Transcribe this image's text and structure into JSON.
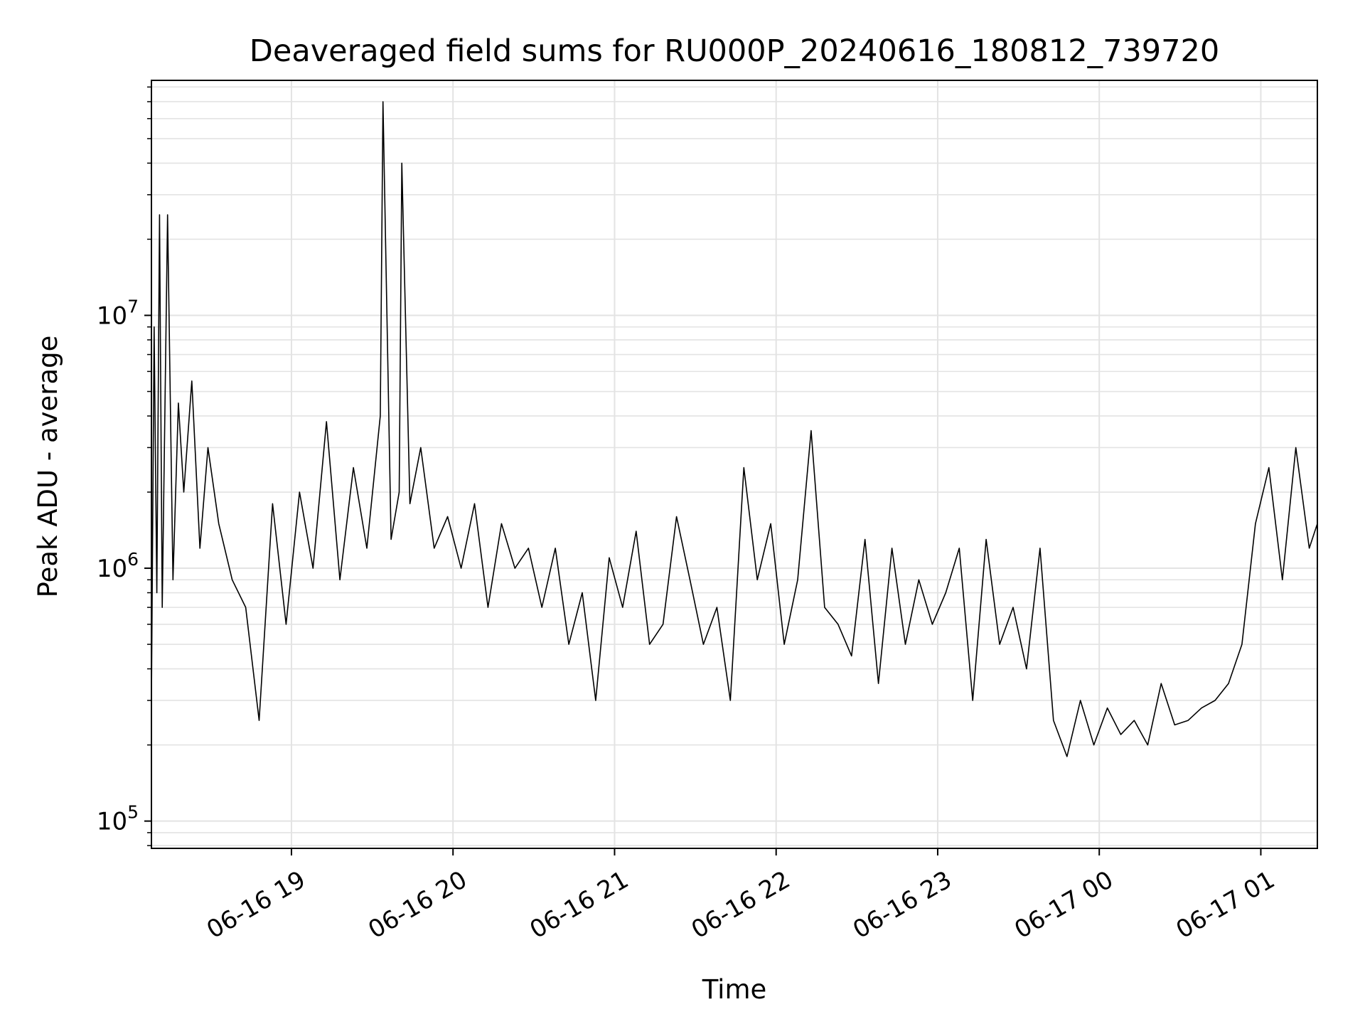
{
  "chart_data": {
    "type": "line",
    "title": "Deaveraged field sums for RU000P_20240616_180812_739720",
    "xlabel": "Time",
    "ylabel": "Peak ADU - average",
    "yscale": "log",
    "ylim": [
      78000,
      85000000
    ],
    "xlim": [
      "2024-06-16 18:08",
      "2024-06-17 01:21"
    ],
    "grid": true,
    "x_ticks": [
      {
        "t": "2024-06-16 19:00",
        "label": "06-16 19"
      },
      {
        "t": "2024-06-16 20:00",
        "label": "06-16 20"
      },
      {
        "t": "2024-06-16 21:00",
        "label": "06-16 21"
      },
      {
        "t": "2024-06-16 22:00",
        "label": "06-16 22"
      },
      {
        "t": "2024-06-16 23:00",
        "label": "06-16 23"
      },
      {
        "t": "2024-06-17 00:00",
        "label": "06-17 00"
      },
      {
        "t": "2024-06-17 01:00",
        "label": "06-17 01"
      }
    ],
    "y_ticks": [
      {
        "value": 100000,
        "base": "10",
        "exp": "5"
      },
      {
        "value": 1000000,
        "base": "10",
        "exp": "6"
      },
      {
        "value": 10000000,
        "base": "10",
        "exp": "7"
      }
    ],
    "line_color": "#000000",
    "series": [
      {
        "x": [
          "2024-06-16 18:08",
          "2024-06-16 18:09",
          "2024-06-16 18:10",
          "2024-06-16 18:11",
          "2024-06-16 18:12",
          "2024-06-16 18:14",
          "2024-06-16 18:16",
          "2024-06-16 18:18",
          "2024-06-16 18:20",
          "2024-06-16 18:23",
          "2024-06-16 18:26",
          "2024-06-16 18:29",
          "2024-06-16 18:33",
          "2024-06-16 18:38",
          "2024-06-16 18:43",
          "2024-06-16 18:48",
          "2024-06-16 18:53",
          "2024-06-16 18:58",
          "2024-06-16 19:03",
          "2024-06-16 19:08",
          "2024-06-16 19:13",
          "2024-06-16 19:18",
          "2024-06-16 19:23",
          "2024-06-16 19:28",
          "2024-06-16 19:33",
          "2024-06-16 19:34",
          "2024-06-16 19:37",
          "2024-06-16 19:40",
          "2024-06-16 19:41",
          "2024-06-16 19:44",
          "2024-06-16 19:48",
          "2024-06-16 19:53",
          "2024-06-16 19:58",
          "2024-06-16 20:03",
          "2024-06-16 20:08",
          "2024-06-16 20:13",
          "2024-06-16 20:18",
          "2024-06-16 20:23",
          "2024-06-16 20:28",
          "2024-06-16 20:33",
          "2024-06-16 20:38",
          "2024-06-16 20:43",
          "2024-06-16 20:48",
          "2024-06-16 20:53",
          "2024-06-16 20:58",
          "2024-06-16 21:03",
          "2024-06-16 21:08",
          "2024-06-16 21:13",
          "2024-06-16 21:18",
          "2024-06-16 21:23",
          "2024-06-16 21:28",
          "2024-06-16 21:33",
          "2024-06-16 21:38",
          "2024-06-16 21:43",
          "2024-06-16 21:48",
          "2024-06-16 21:53",
          "2024-06-16 21:58",
          "2024-06-16 22:03",
          "2024-06-16 22:08",
          "2024-06-16 22:13",
          "2024-06-16 22:18",
          "2024-06-16 22:23",
          "2024-06-16 22:28",
          "2024-06-16 22:33",
          "2024-06-16 22:38",
          "2024-06-16 22:43",
          "2024-06-16 22:48",
          "2024-06-16 22:53",
          "2024-06-16 22:58",
          "2024-06-16 23:03",
          "2024-06-16 23:08",
          "2024-06-16 23:13",
          "2024-06-16 23:18",
          "2024-06-16 23:23",
          "2024-06-16 23:28",
          "2024-06-16 23:33",
          "2024-06-16 23:38",
          "2024-06-16 23:43",
          "2024-06-16 23:48",
          "2024-06-16 23:53",
          "2024-06-16 23:58",
          "2024-06-17 00:03",
          "2024-06-17 00:08",
          "2024-06-17 00:13",
          "2024-06-17 00:18",
          "2024-06-17 00:23",
          "2024-06-17 00:28",
          "2024-06-17 00:33",
          "2024-06-17 00:38",
          "2024-06-17 00:43",
          "2024-06-17 00:48",
          "2024-06-17 00:53",
          "2024-06-17 00:58",
          "2024-06-17 01:03",
          "2024-06-17 01:08",
          "2024-06-17 01:13",
          "2024-06-17 01:18",
          "2024-06-17 01:21"
        ],
        "y": [
          300000,
          9000000,
          800000,
          25000000,
          700000,
          25000000,
          900000,
          4500000,
          2000000,
          5500000,
          1200000,
          3000000,
          1500000,
          900000,
          700000,
          250000,
          1800000,
          600000,
          2000000,
          1000000,
          3800000,
          900000,
          2500000,
          1200000,
          4000000,
          70000000,
          1300000,
          2000000,
          40000000,
          1800000,
          3000000,
          1200000,
          1600000,
          1000000,
          1800000,
          700000,
          1500000,
          1000000,
          1200000,
          700000,
          1200000,
          500000,
          800000,
          300000,
          1100000,
          700000,
          1400000,
          500000,
          600000,
          1600000,
          900000,
          500000,
          700000,
          300000,
          2500000,
          900000,
          1500000,
          500000,
          900000,
          3500000,
          700000,
          600000,
          450000,
          1300000,
          350000,
          1200000,
          500000,
          900000,
          600000,
          800000,
          1200000,
          300000,
          1300000,
          500000,
          700000,
          400000,
          1200000,
          250000,
          180000,
          300000,
          200000,
          280000,
          220000,
          250000,
          200000,
          350000,
          240000,
          250000,
          280000,
          300000,
          350000,
          500000,
          1500000,
          2500000,
          900000,
          3000000,
          1200000,
          1500000
        ]
      }
    ]
  }
}
